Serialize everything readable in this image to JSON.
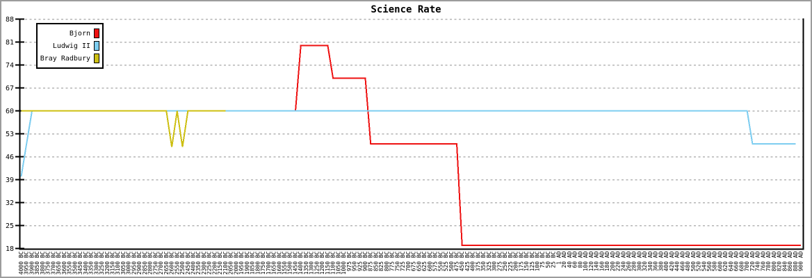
{
  "window": {
    "background": "#ffffff",
    "border_color": "#9c9c9c"
  },
  "chart_data": {
    "type": "line",
    "title": "Science Rate",
    "xlabel": "",
    "ylabel": "",
    "ylim": [
      18,
      88
    ],
    "yticks": [
      18,
      25,
      32,
      39,
      46,
      53,
      60,
      67,
      74,
      81,
      88
    ],
    "grid": "horizontal-dashed",
    "legend_position": "top-left",
    "colors": {
      "grid": "#b4b4b4",
      "axis": "#000000",
      "text": "#000000"
    },
    "x_tick_labels": [
      "4000 BC",
      "3950 BC",
      "3900 BC",
      "3850 BC",
      "3800 BC",
      "3750 BC",
      "3700 BC",
      "3650 BC",
      "3600 BC",
      "3550 BC",
      "3500 BC",
      "3450 BC",
      "3400 BC",
      "3350 BC",
      "3300 BC",
      "3250 BC",
      "3200 BC",
      "3150 BC",
      "3100 BC",
      "3050 BC",
      "3000 BC",
      "2950 BC",
      "2900 BC",
      "2850 BC",
      "2800 BC",
      "2750 BC",
      "2700 BC",
      "2650 BC",
      "2600 BC",
      "2550 BC",
      "2500 BC",
      "2450 BC",
      "2400 BC",
      "2350 BC",
      "2300 BC",
      "2250 BC",
      "2200 BC",
      "2150 BC",
      "2100 BC",
      "2050 BC",
      "2000 BC",
      "1950 BC",
      "1900 BC",
      "1850 BC",
      "1800 BC",
      "1750 BC",
      "1700 BC",
      "1650 BC",
      "1600 BC",
      "1550 BC",
      "1500 BC",
      "1450 BC",
      "1400 BC",
      "1350 BC",
      "1300 BC",
      "1250 BC",
      "1200 BC",
      "1150 BC",
      "1100 BC",
      "1050 BC",
      "1000 BC",
      "975 BC",
      "950 BC",
      "925 BC",
      "900 BC",
      "875 BC",
      "850 BC",
      "825 BC",
      "800 BC",
      "775 BC",
      "750 BC",
      "725 BC",
      "700 BC",
      "675 BC",
      "650 BC",
      "625 BC",
      "600 BC",
      "575 BC",
      "550 BC",
      "525 BC",
      "500 BC",
      "475 BC",
      "450 BC",
      "425 BC",
      "400 BC",
      "375 BC",
      "350 BC",
      "325 BC",
      "300 BC",
      "275 BC",
      "250 BC",
      "225 BC",
      "200 BC",
      "175 BC",
      "150 BC",
      "125 BC",
      "100 BC",
      "75 BC",
      "50 BC",
      "25 BC",
      "1 AD",
      "20 AD",
      "40 AD",
      "60 AD",
      "80 AD",
      "100 AD",
      "120 AD",
      "140 AD",
      "160 AD",
      "180 AD",
      "200 AD",
      "220 AD",
      "240 AD",
      "260 AD",
      "280 AD",
      "300 AD",
      "320 AD",
      "340 AD",
      "360 AD",
      "380 AD",
      "400 AD",
      "420 AD",
      "440 AD",
      "460 AD",
      "480 AD",
      "500 AD",
      "520 AD",
      "540 AD",
      "560 AD",
      "580 AD",
      "600 AD",
      "620 AD",
      "640 AD",
      "660 AD",
      "680 AD",
      "700 AD",
      "720 AD",
      "740 AD",
      "760 AD",
      "780 AD",
      "800 AD",
      "820 AD",
      "840 AD",
      "860 AD",
      "880 AD",
      "900 AD"
    ],
    "series": [
      {
        "name": "Bjorn",
        "color": "#ee1111",
        "values": [
          60,
          60,
          60,
          60,
          60,
          60,
          60,
          60,
          60,
          60,
          60,
          60,
          60,
          60,
          60,
          60,
          60,
          60,
          60,
          60,
          60,
          60,
          60,
          60,
          60,
          60,
          60,
          60,
          60,
          60,
          60,
          60,
          60,
          60,
          60,
          60,
          60,
          60,
          60,
          60,
          60,
          60,
          60,
          60,
          60,
          60,
          60,
          60,
          60,
          60,
          60,
          60,
          80,
          80,
          80,
          80,
          80,
          80,
          70,
          70,
          70,
          70,
          70,
          70,
          70,
          50,
          50,
          50,
          50,
          50,
          50,
          50,
          50,
          50,
          50,
          50,
          50,
          50,
          50,
          50,
          50,
          50,
          19,
          19,
          19,
          19,
          19,
          19,
          19,
          19,
          19,
          19,
          19,
          19,
          19,
          19,
          19,
          19,
          19,
          19,
          19,
          19,
          19,
          19,
          19,
          19,
          19,
          19,
          19,
          19,
          19,
          19,
          19,
          19,
          19,
          19,
          19,
          19,
          19,
          19,
          19,
          19,
          19,
          19,
          19,
          19,
          19,
          19,
          19,
          19,
          19,
          19,
          19,
          19,
          19,
          19,
          19,
          19,
          19,
          19,
          19,
          19,
          19,
          19,
          19,
          19
        ]
      },
      {
        "name": "Ludwig II",
        "color": "#7dcdf0",
        "values": [
          40,
          50,
          60,
          60,
          60,
          60,
          60,
          60,
          60,
          60,
          60,
          60,
          60,
          60,
          60,
          60,
          60,
          60,
          60,
          60,
          60,
          60,
          60,
          60,
          60,
          60,
          60,
          60,
          60,
          60,
          60,
          60,
          60,
          60,
          60,
          60,
          60,
          60,
          60,
          60,
          60,
          60,
          60,
          60,
          60,
          60,
          60,
          60,
          60,
          60,
          60,
          60,
          60,
          60,
          60,
          60,
          60,
          60,
          60,
          60,
          60,
          60,
          60,
          60,
          60,
          60,
          60,
          60,
          60,
          60,
          60,
          60,
          60,
          60,
          60,
          60,
          60,
          60,
          60,
          60,
          60,
          60,
          60,
          60,
          60,
          60,
          60,
          60,
          60,
          60,
          60,
          60,
          60,
          60,
          60,
          60,
          60,
          60,
          60,
          60,
          60,
          60,
          60,
          60,
          60,
          60,
          60,
          60,
          60,
          60,
          60,
          60,
          60,
          60,
          60,
          60,
          60,
          60,
          60,
          60,
          60,
          60,
          60,
          60,
          60,
          60,
          60,
          60,
          60,
          60,
          60,
          60,
          60,
          60,
          60,
          60,
          50,
          50,
          50,
          50,
          50,
          50,
          50,
          50,
          50,
          null
        ]
      },
      {
        "name": "Bray Radbury",
        "color": "#cdbf12",
        "values": [
          60,
          60,
          60,
          60,
          60,
          60,
          60,
          60,
          60,
          60,
          60,
          60,
          60,
          60,
          60,
          60,
          60,
          60,
          60,
          60,
          60,
          60,
          60,
          60,
          60,
          60,
          60,
          60,
          49,
          60,
          49,
          60,
          60,
          60,
          60,
          60,
          60,
          60,
          60,
          null,
          null,
          null,
          null,
          null,
          null,
          null,
          null,
          null,
          null,
          null,
          null,
          null,
          null,
          null,
          null,
          null,
          null,
          null,
          null,
          null,
          null,
          null,
          null,
          null,
          null,
          null,
          null,
          null,
          null,
          null,
          null,
          null,
          null,
          null,
          null,
          null,
          null,
          null,
          null,
          null,
          null,
          null,
          null,
          null,
          null,
          null,
          null,
          null,
          null,
          null,
          null,
          null,
          null,
          null,
          null,
          null,
          null,
          null,
          null,
          null,
          null,
          null,
          null,
          null,
          null,
          null,
          null,
          null,
          null,
          null,
          null,
          null,
          null,
          null,
          null,
          null,
          null,
          null,
          null,
          null,
          null,
          null,
          null,
          null,
          null,
          null,
          null,
          null,
          null,
          null,
          null,
          null,
          null,
          null,
          null,
          null,
          null,
          null,
          null,
          null,
          null,
          null,
          null,
          null,
          null,
          null
        ]
      }
    ]
  }
}
